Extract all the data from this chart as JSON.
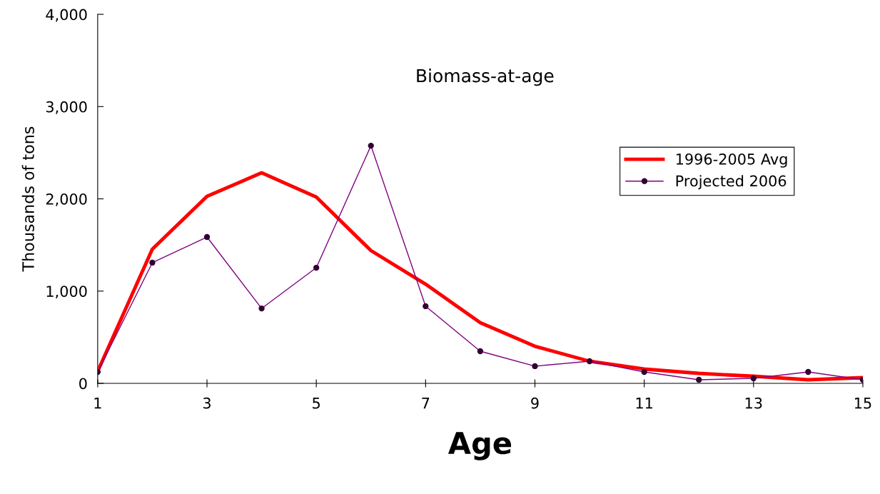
{
  "chart_data": {
    "type": "line",
    "title": "Biomass-at-age",
    "xlabel": "Age",
    "ylabel": "Thousands of tons",
    "x": [
      1,
      2,
      3,
      4,
      5,
      6,
      7,
      8,
      9,
      10,
      11,
      12,
      13,
      14,
      15
    ],
    "series": [
      {
        "name": "1996-2005 Avg",
        "color": "#ff0000",
        "marker": "none",
        "values": [
          130,
          1455,
          2027,
          2282,
          2019,
          1439,
          1075,
          658,
          402,
          240,
          155,
          108,
          77,
          39,
          62
        ]
      },
      {
        "name": "Projected 2006",
        "color": "#800080",
        "marker": "circle",
        "values": [
          124,
          1308,
          1586,
          812,
          1253,
          2576,
          836,
          348,
          186,
          240,
          124,
          39,
          54,
          124,
          39
        ]
      }
    ],
    "xlim": [
      1,
      15
    ],
    "xticks": [
      1,
      3,
      5,
      7,
      9,
      11,
      13,
      15
    ],
    "ylim": [
      0,
      4000
    ],
    "yticks": [
      0,
      {
        "value": 1000,
        "label": "1,000"
      },
      {
        "value": 2000,
        "label": "2,000"
      },
      {
        "value": 3000,
        "label": "3,000"
      },
      {
        "value": 4000,
        "label": "4,000"
      }
    ],
    "grid": false,
    "legend": "top right"
  }
}
